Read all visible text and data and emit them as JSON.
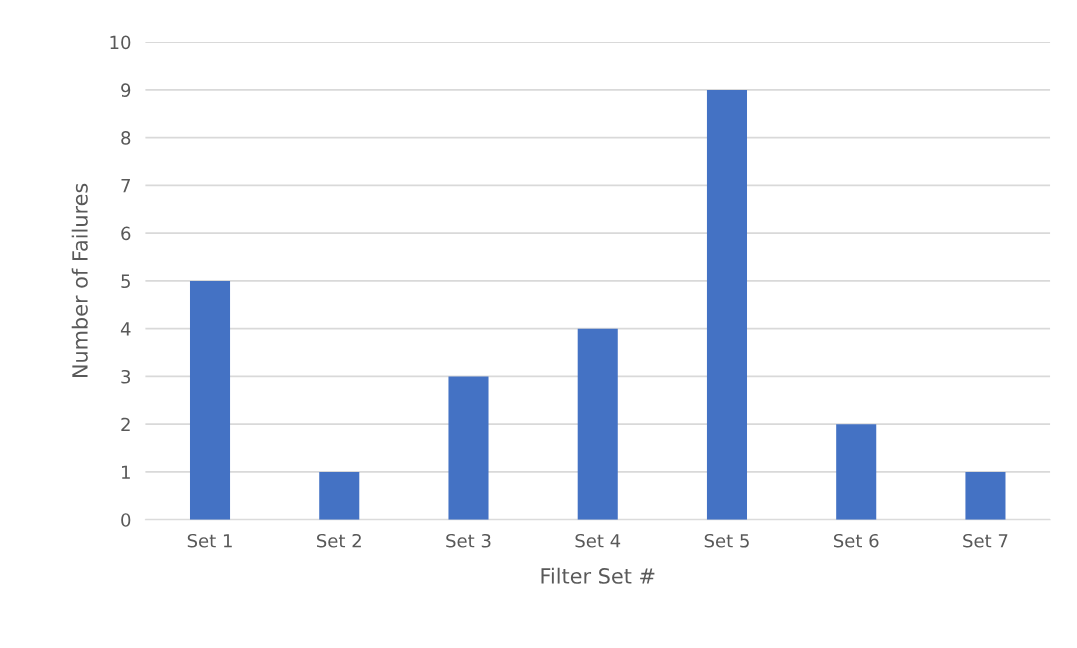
{
  "chart_data": {
    "type": "bar",
    "xlabel": "Filter Set #",
    "ylabel": "Number of Failures",
    "categories": [
      "Set 1",
      "Set 2",
      "Set 3",
      "Set 4",
      "Set 5",
      "Set 6",
      "Set 7"
    ],
    "values": [
      5,
      1,
      3,
      4,
      9,
      2,
      1
    ],
    "color": "#4472c4",
    "ylim": [
      0,
      10
    ],
    "yticks": [
      0,
      1,
      2,
      3,
      4,
      5,
      6,
      7,
      8,
      9,
      10
    ],
    "grid": "y",
    "legend": false
  }
}
